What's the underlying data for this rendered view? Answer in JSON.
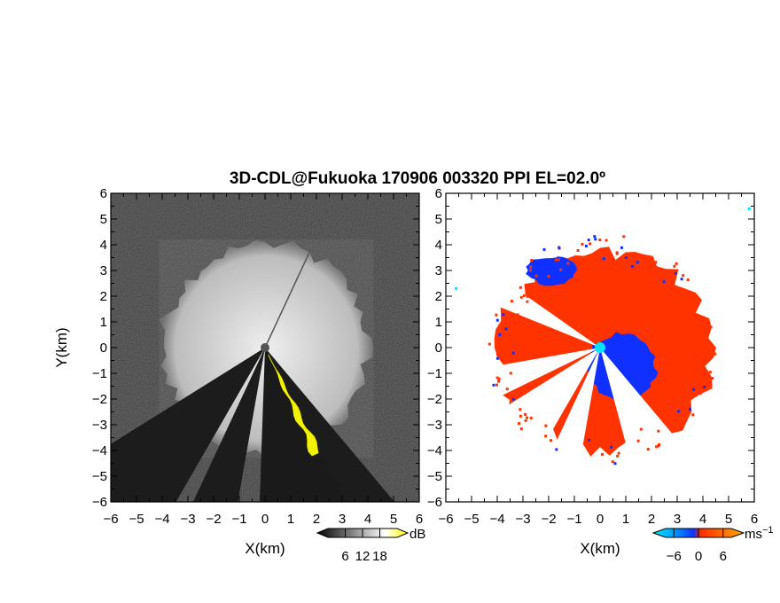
{
  "chart_data": [
    {
      "type": "heatmap",
      "panel": "reflectivity",
      "title": "3D-CDL@Fukuoka 170906 003320 PPI EL=02.0º",
      "xlabel": "X(km)",
      "ylabel": "Y(km)",
      "xlim": [
        -6,
        6
      ],
      "ylim": [
        -6,
        6
      ],
      "xticks": [
        "-6",
        "-5",
        "-4",
        "-3",
        "-2",
        "-1",
        "0",
        "1",
        "2",
        "3",
        "4",
        "5",
        "6"
      ],
      "yticks": [
        "6",
        "5",
        "4",
        "3",
        "2",
        "1",
        "0",
        "-1",
        "-2",
        "-3",
        "-4",
        "-5",
        "-6"
      ],
      "colorbar": {
        "unit": "dB",
        "ticks": [
          "6",
          "12",
          "18"
        ],
        "tick_values": [
          6,
          12,
          18
        ],
        "range": [
          0,
          24
        ],
        "colors": [
          "#000000",
          "#ffffff",
          "#ffff00"
        ]
      },
      "features": {
        "echo_radius_km": 4,
        "blocked_sectors_deg": [
          [
            140,
            165
          ],
          [
            190,
            205
          ],
          [
            210,
            238
          ]
        ],
        "ground_clutter": "yellow band toward SSE from 0 to 4.5 km"
      },
      "background": "#1a1a1a",
      "grid": false
    },
    {
      "type": "heatmap",
      "panel": "doppler_velocity",
      "xlabel": "X(km)",
      "xlim": [
        -6,
        6
      ],
      "ylim": [
        -6,
        6
      ],
      "xticks": [
        "-6",
        "-5",
        "-4",
        "-3",
        "-2",
        "-1",
        "0",
        "1",
        "2",
        "3",
        "4",
        "5",
        "6"
      ],
      "yticks": [
        "6",
        "5",
        "4",
        "3",
        "2",
        "1",
        "0",
        "-1",
        "-2",
        "-3",
        "-4",
        "-5",
        "-6"
      ],
      "colorbar": {
        "unit": "ms",
        "unit_exponent": "−1",
        "ticks": [
          "−6",
          "0",
          "6"
        ],
        "tick_values": [
          -6,
          0,
          6
        ],
        "range": [
          -8,
          8
        ],
        "colors": [
          "#00e5ff",
          "#1030ff",
          "#ff2a00",
          "#ff9900"
        ]
      },
      "features": {
        "approaching_color": "#1030ff",
        "receding_color": "#ff3300",
        "radar_site": [
          0,
          0
        ]
      },
      "background": "#ffffff",
      "grid": false
    }
  ]
}
